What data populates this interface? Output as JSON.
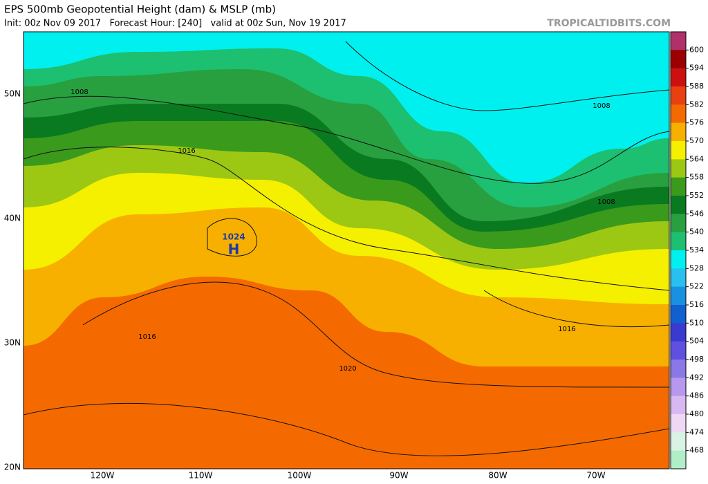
{
  "header": {
    "title": "EPS 500mb Geopotential Height (dam) & MSLP (mb)",
    "subtitle": "Init: 00z Nov 09 2017   Forecast Hour: [240]   valid at 00z Sun, Nov 19 2017",
    "watermark": "TROPICALTIDBITS.COM"
  },
  "map": {
    "lat_labels": [
      "50N",
      "40N",
      "30N",
      "20N"
    ],
    "lon_labels": [
      "120W",
      "110W",
      "100W",
      "90W",
      "80W",
      "70W"
    ],
    "contour_labels": [
      "1008",
      "1016",
      "1016",
      "1020",
      "1008",
      "1008",
      "1016"
    ],
    "high": {
      "pressure": "1024",
      "letter": "H"
    }
  },
  "colorbar": {
    "labels": [
      "600",
      "594",
      "588",
      "582",
      "576",
      "570",
      "564",
      "558",
      "552",
      "546",
      "540",
      "534",
      "528",
      "522",
      "516",
      "510",
      "504",
      "498",
      "492",
      "486",
      "480",
      "474",
      "468"
    ],
    "colors": [
      "#b0306a",
      "#9a0000",
      "#cc1010",
      "#e84010",
      "#f56a00",
      "#f7b000",
      "#f5f000",
      "#9cc814",
      "#3a9a1c",
      "#0a7a20",
      "#28a040",
      "#1cc070",
      "#00f0f0",
      "#28c0ee",
      "#1a90e0",
      "#1060d0",
      "#3a3ad0",
      "#6050e0",
      "#8a78e6",
      "#b898ee",
      "#d8b8f2",
      "#eed8f4",
      "#d8f2e6",
      "#b0eec8"
    ]
  }
}
